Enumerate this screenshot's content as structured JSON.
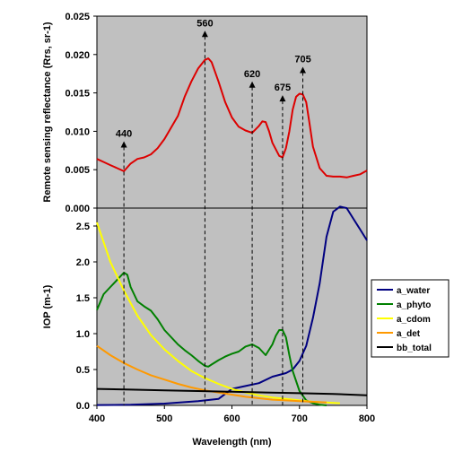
{
  "chart_data": [
    {
      "type": "line",
      "title": "",
      "xlabel": "",
      "ylabel": "Remote sensing reflectance (Rrs, sr-1)",
      "xlim": [
        400,
        800
      ],
      "ylim": [
        0,
        0.025
      ],
      "yticks": [
        "0.000",
        "0.005",
        "0.010",
        "0.015",
        "0.020",
        "0.025"
      ],
      "grid": false,
      "background": "#c0c0c0",
      "series": [
        {
          "color": "#dd0000",
          "x": [
            400,
            410,
            420,
            430,
            440,
            450,
            460,
            470,
            480,
            490,
            500,
            510,
            520,
            530,
            540,
            550,
            560,
            565,
            570,
            580,
            590,
            600,
            610,
            620,
            630,
            640,
            645,
            650,
            655,
            660,
            670,
            675,
            680,
            685,
            690,
            695,
            700,
            705,
            710,
            715,
            720,
            730,
            740,
            750,
            760,
            770,
            780,
            790,
            800
          ],
          "y": [
            0.0064,
            0.006,
            0.0056,
            0.0052,
            0.0048,
            0.0058,
            0.0064,
            0.0066,
            0.007,
            0.0078,
            0.009,
            0.0105,
            0.012,
            0.0145,
            0.0165,
            0.0182,
            0.0193,
            0.0195,
            0.019,
            0.0165,
            0.0138,
            0.0118,
            0.0106,
            0.0101,
            0.0098,
            0.0107,
            0.0113,
            0.0112,
            0.01,
            0.0085,
            0.0068,
            0.0066,
            0.0078,
            0.01,
            0.0128,
            0.0145,
            0.0149,
            0.0148,
            0.0138,
            0.011,
            0.008,
            0.0052,
            0.0042,
            0.0041,
            0.0041,
            0.004,
            0.0042,
            0.0044,
            0.0049
          ]
        }
      ],
      "annotations": [
        {
          "label": "440",
          "x": 440,
          "y": 0.0087
        },
        {
          "label": "560",
          "x": 560,
          "y": 0.0231
        },
        {
          "label": "620",
          "x": 630,
          "y": 0.0165
        },
        {
          "label": "675",
          "x": 675,
          "y": 0.0147
        },
        {
          "label": "705",
          "x": 705,
          "y": 0.0184
        }
      ]
    },
    {
      "type": "line",
      "title": "",
      "xlabel": "Wavelength (nm)",
      "ylabel": "IOP (m-1)",
      "xlim": [
        400,
        800
      ],
      "ylim": [
        0,
        2.75
      ],
      "xticks": [
        "400",
        "500",
        "600",
        "700",
        "800"
      ],
      "yticks": [
        "0.0",
        "0.5",
        "1.0",
        "1.5",
        "2.0",
        "2.5"
      ],
      "grid": false,
      "background": "#c0c0c0",
      "legend": "right",
      "series": [
        {
          "name": "a_water",
          "color": "#000080",
          "x": [
            400,
            450,
            500,
            550,
            580,
            600,
            620,
            640,
            660,
            680,
            690,
            700,
            710,
            720,
            730,
            740,
            750,
            760,
            770,
            780,
            790,
            800
          ],
          "y": [
            0.005,
            0.009,
            0.025,
            0.06,
            0.09,
            0.23,
            0.27,
            0.31,
            0.4,
            0.45,
            0.5,
            0.62,
            0.83,
            1.22,
            1.7,
            2.35,
            2.7,
            2.77,
            2.75,
            2.6,
            2.45,
            2.3
          ]
        },
        {
          "name": "a_phyto",
          "color": "#008000",
          "x": [
            400,
            410,
            420,
            430,
            440,
            445,
            450,
            460,
            470,
            480,
            490,
            500,
            510,
            520,
            530,
            540,
            550,
            560,
            565,
            570,
            580,
            590,
            600,
            610,
            620,
            630,
            640,
            650,
            660,
            665,
            670,
            675,
            680,
            685,
            690,
            700,
            710,
            720,
            730,
            740
          ],
          "y": [
            1.33,
            1.55,
            1.65,
            1.75,
            1.85,
            1.82,
            1.65,
            1.45,
            1.38,
            1.32,
            1.2,
            1.05,
            0.95,
            0.85,
            0.77,
            0.7,
            0.62,
            0.55,
            0.54,
            0.57,
            0.63,
            0.68,
            0.72,
            0.75,
            0.82,
            0.85,
            0.8,
            0.7,
            0.85,
            0.97,
            1.05,
            1.05,
            0.95,
            0.7,
            0.48,
            0.2,
            0.07,
            0.03,
            0.01,
            0.0
          ]
        },
        {
          "name": "a_cdom",
          "color": "#ffff00",
          "x": [
            400,
            420,
            440,
            460,
            480,
            500,
            520,
            540,
            560,
            580,
            600,
            620,
            640,
            660,
            680,
            700,
            720,
            740,
            760
          ],
          "y": [
            2.55,
            2.0,
            1.6,
            1.25,
            0.98,
            0.78,
            0.62,
            0.48,
            0.38,
            0.3,
            0.23,
            0.18,
            0.14,
            0.11,
            0.09,
            0.07,
            0.05,
            0.04,
            0.03
          ]
        },
        {
          "name": "a_det",
          "color": "#ff9900",
          "x": [
            400,
            420,
            440,
            460,
            480,
            500,
            520,
            540,
            560,
            580,
            600,
            620,
            640,
            660,
            680,
            700,
            720,
            740
          ],
          "y": [
            0.83,
            0.7,
            0.59,
            0.5,
            0.42,
            0.36,
            0.3,
            0.25,
            0.21,
            0.18,
            0.15,
            0.12,
            0.1,
            0.08,
            0.07,
            0.06,
            0.05,
            0.04
          ]
        },
        {
          "name": "bb_total",
          "color": "#000000",
          "x": [
            400,
            450,
            500,
            550,
            600,
            650,
            700,
            750,
            800
          ],
          "y": [
            0.23,
            0.22,
            0.21,
            0.2,
            0.19,
            0.18,
            0.17,
            0.16,
            0.14
          ]
        }
      ]
    }
  ]
}
